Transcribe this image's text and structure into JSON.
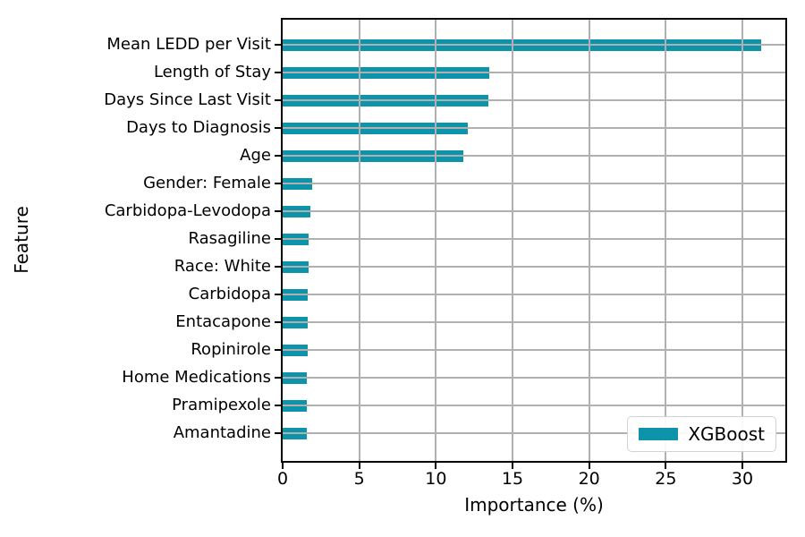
{
  "chart_data": {
    "type": "bar",
    "orientation": "horizontal",
    "title": "",
    "xlabel": "Importance (%)",
    "ylabel": "Feature",
    "categories": [
      "Mean LEDD per Visit",
      "Length of Stay",
      "Days Since Last Visit",
      "Days to Diagnosis",
      "Age",
      "Gender: Female",
      "Carbidopa-Levodopa",
      "Rasagiline",
      "Race: White",
      "Carbidopa",
      "Entacapone",
      "Ropinirole",
      "Home Medications",
      "Pramipexole",
      "Amantadine"
    ],
    "series": [
      {
        "name": "XGBoost",
        "values": [
          31.2,
          13.5,
          13.4,
          12.1,
          11.8,
          1.9,
          1.8,
          1.7,
          1.7,
          1.65,
          1.65,
          1.65,
          1.6,
          1.55,
          1.55
        ]
      }
    ],
    "x_ticks": [
      0,
      5,
      10,
      15,
      20,
      25,
      30
    ],
    "xlim": [
      0,
      32.8
    ],
    "grid": true,
    "grid_above_bars": true,
    "legend": {
      "label": "XGBoost",
      "position": "lower right"
    },
    "colors": {
      "bar": "#0d94aa",
      "grid": "#b0b0b0",
      "axis": "#000000",
      "legend_border": "#d2d2d2",
      "background": "#ffffff"
    }
  }
}
